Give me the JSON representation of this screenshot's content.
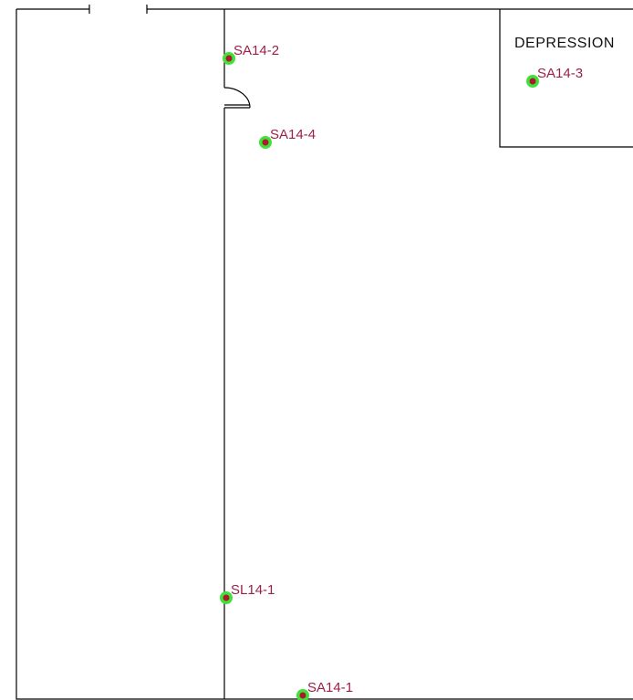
{
  "rooms": [
    {
      "label": "DEPRESSION"
    }
  ],
  "samples": [
    {
      "label": "SA14-2"
    },
    {
      "label": "SA14-3"
    },
    {
      "label": "SA14-4"
    },
    {
      "label": "SL14-1"
    },
    {
      "label": "SA14-1"
    }
  ]
}
